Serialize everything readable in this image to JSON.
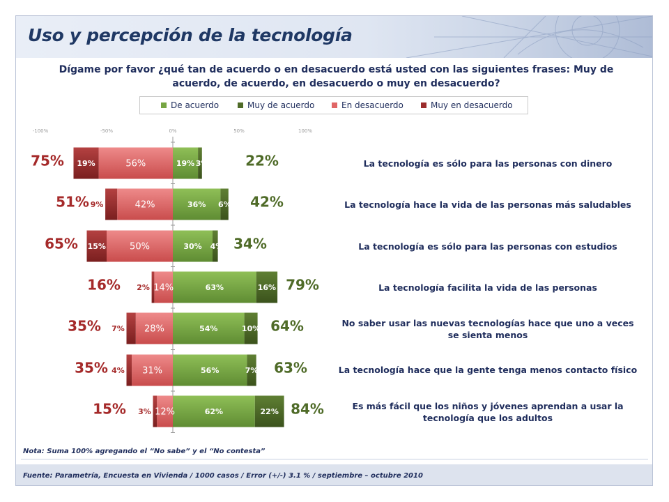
{
  "title": "Uso y percepción de la tecnología",
  "question": "Dígame por favor ¿qué tan de acuerdo o en desacuerdo está usted con las siguientes frases: Muy de acuerdo, de acuerdo, en desacuerdo o muy en desacuerdo?",
  "legend": [
    {
      "label": "De acuerdo",
      "color": "#76a543"
    },
    {
      "label": "Muy de acuerdo",
      "color": "#4f6b28"
    },
    {
      "label": "En desacuerdo",
      "color": "#e06666"
    },
    {
      "label": "Muy en desacuerdo",
      "color": "#9b2c2c"
    }
  ],
  "note": "Nota: Suma 100% agregando el “No sabe” y el “No contesta”",
  "source": "Fuente: Parametría, Encuesta en Vivienda / 1000 casos / Error (+/-) 3.1 % / septiembre – octubre 2010",
  "colors": {
    "de_acuerdo": "#76a543",
    "muy_de_acuerdo": "#4f6b28",
    "en_desacuerdo": "#e06666",
    "muy_en_desacuerdo": "#9b2c2c",
    "total_disagree_text": "#a52a2a",
    "total_agree_text": "#4f6b28"
  },
  "chart_data": {
    "type": "bar",
    "orientation": "horizontal-diverging",
    "xlim": [
      -100,
      100
    ],
    "tick_labels": [
      "-100%",
      "-50%",
      "0%",
      "50%",
      "100%"
    ],
    "tick_values": [
      -100,
      -50,
      0,
      50,
      100
    ],
    "series_names": [
      "Muy en desacuerdo",
      "En desacuerdo",
      "De acuerdo",
      "Muy de acuerdo"
    ],
    "rows": [
      {
        "statement": "La tecnología es sólo para las personas con dinero",
        "muy_en_desacuerdo": 19,
        "en_desacuerdo": 56,
        "de_acuerdo": 19,
        "muy_de_acuerdo": 3,
        "muy_en_desacuerdo_label": "19%",
        "en_desacuerdo_label": "56%",
        "de_acuerdo_label": "19%",
        "muy_de_acuerdo_label": "3%",
        "total_disagree": "75%",
        "total_agree": "22%"
      },
      {
        "statement": "La tecnología hace la vida de las personas más saludables",
        "muy_en_desacuerdo": 9,
        "en_desacuerdo": 42,
        "de_acuerdo": 36,
        "muy_de_acuerdo": 6,
        "muy_en_desacuerdo_label": "9%",
        "en_desacuerdo_label": "42%",
        "de_acuerdo_label": "36%",
        "muy_de_acuerdo_label": "6%",
        "total_disagree": "51%",
        "total_agree": "42%"
      },
      {
        "statement": "La tecnología es sólo para las personas con estudios",
        "muy_en_desacuerdo": 15,
        "en_desacuerdo": 50,
        "de_acuerdo": 30,
        "muy_de_acuerdo": 4,
        "muy_en_desacuerdo_label": "15%",
        "en_desacuerdo_label": "50%",
        "de_acuerdo_label": "30%",
        "muy_de_acuerdo_label": "4%",
        "total_disagree": "65%",
        "total_agree": "34%"
      },
      {
        "statement": "La tecnología facilita la vida de las personas",
        "muy_en_desacuerdo": 2,
        "en_desacuerdo": 14,
        "de_acuerdo": 63,
        "muy_de_acuerdo": 16,
        "muy_en_desacuerdo_label": "2%",
        "en_desacuerdo_label": "14%",
        "de_acuerdo_label": "63%",
        "muy_de_acuerdo_label": "16%",
        "total_disagree": "16%",
        "total_agree": "79%"
      },
      {
        "statement": "No saber usar las nuevas tecnologías hace que uno a veces se sienta menos",
        "muy_en_desacuerdo": 7,
        "en_desacuerdo": 28,
        "de_acuerdo": 54,
        "muy_de_acuerdo": 10,
        "muy_en_desacuerdo_label": "7%",
        "en_desacuerdo_label": "28%",
        "de_acuerdo_label": "54%",
        "muy_de_acuerdo_label": "10%",
        "total_disagree": "35%",
        "total_agree": "64%"
      },
      {
        "statement": "La tecnología hace que la gente tenga menos contacto físico",
        "muy_en_desacuerdo": 4,
        "en_desacuerdo": 31,
        "de_acuerdo": 56,
        "muy_de_acuerdo": 7,
        "muy_en_desacuerdo_label": "4%",
        "en_desacuerdo_label": "31%",
        "de_acuerdo_label": "56%",
        "muy_de_acuerdo_label": "7%",
        "total_disagree": "35%",
        "total_agree": "63%"
      },
      {
        "statement": "Es más fácil que los niños y jóvenes aprendan a usar la tecnología que los adultos",
        "muy_en_desacuerdo": 3,
        "en_desacuerdo": 12,
        "de_acuerdo": 62,
        "muy_de_acuerdo": 22,
        "muy_en_desacuerdo_label": "3%",
        "en_desacuerdo_label": "12%",
        "de_acuerdo_label": "62%",
        "muy_de_acuerdo_label": "22%",
        "total_disagree": "15%",
        "total_agree": "84%"
      }
    ]
  }
}
